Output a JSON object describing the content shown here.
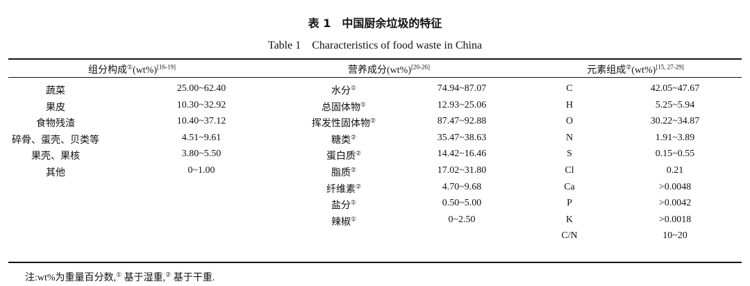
{
  "title": "表 1　中国厨余垃圾的特征",
  "subtitle": "Table 1　Characteristics of food waste in China",
  "headers": [
    {
      "label": "组分构成",
      "mark": "①",
      "unit": "(wt%)",
      "ref": "[16-19]"
    },
    {
      "label": "营养成分",
      "mark": "",
      "unit": "(wt%)",
      "ref": "[20-26]"
    },
    {
      "label": "元素组成",
      "mark": "②",
      "unit": "(wt%)",
      "ref": "[15, 27-29]"
    }
  ],
  "composition": [
    {
      "name": "蔬菜",
      "value": "25.00~62.40"
    },
    {
      "name": "果皮",
      "value": "10.30~32.92"
    },
    {
      "name": "食物残渣",
      "value": "10.40~37.12"
    },
    {
      "name": "碎骨、蛋壳、贝类等",
      "value": "4.51~9.61"
    },
    {
      "name": "果壳、果核",
      "value": "3.80~5.50"
    },
    {
      "name": "其他",
      "value": "0~1.00"
    }
  ],
  "nutrients": [
    {
      "name": "水分",
      "mark": "①",
      "value": "74.94~87.07"
    },
    {
      "name": "总固体物",
      "mark": "①",
      "value": "12.93~25.06"
    },
    {
      "name": "挥发性固体物",
      "mark": "②",
      "value": "87.47~92.88"
    },
    {
      "name": "糖类",
      "mark": "②",
      "value": "35.47~38.63"
    },
    {
      "name": "蛋白质",
      "mark": "②",
      "value": "14.42~16.46"
    },
    {
      "name": "脂质",
      "mark": "②",
      "value": "17.02~31.80"
    },
    {
      "name": "纤维素",
      "mark": "②",
      "value": "4.70~9.68"
    },
    {
      "name": "盐分",
      "mark": "①",
      "value": "0.50~5.00"
    },
    {
      "name": "辣椒",
      "mark": "①",
      "value": "0~2.50"
    }
  ],
  "elements": [
    {
      "name": "C",
      "value": "42.05~47.67"
    },
    {
      "name": "H",
      "value": "5.25~5.94"
    },
    {
      "name": "O",
      "value": "30.22~34.87"
    },
    {
      "name": "N",
      "value": "1.91~3.89"
    },
    {
      "name": "S",
      "value": "0.15~0.55"
    },
    {
      "name": "Cl",
      "value": "0.21"
    },
    {
      "name": "Ca",
      "value": ">0.0048"
    },
    {
      "name": "P",
      "value": ">0.0042"
    },
    {
      "name": "K",
      "value": ">0.0018"
    },
    {
      "name": "C/N",
      "value": "10~20"
    }
  ],
  "note": {
    "prefix": "注:wt%为重量百分数,",
    "m1": "①",
    "t1": " 基于湿重,",
    "m2": "②",
    "t2": " 基于干重."
  }
}
